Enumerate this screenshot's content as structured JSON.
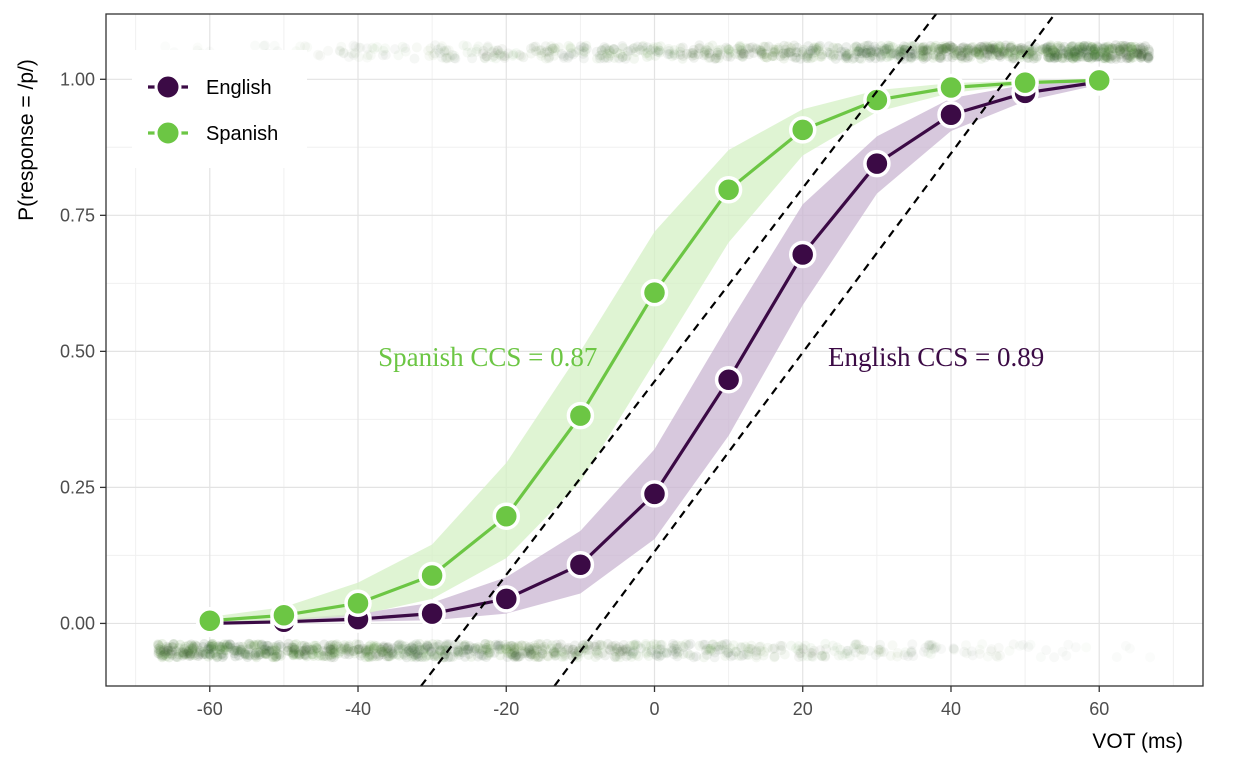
{
  "chart_data": {
    "type": "line",
    "xlabel": "VOT (ms)",
    "ylabel": "P(response = /p/)",
    "xlim": [
      -74,
      74
    ],
    "ylim": [
      -0.115,
      1.12
    ],
    "x_ticks": [
      -60,
      -40,
      -20,
      0,
      20,
      40,
      60
    ],
    "x_tick_labels": [
      "-60",
      "-40",
      "-20",
      "0",
      "20",
      "40",
      "60"
    ],
    "y_ticks": [
      0,
      0.25,
      0.5,
      0.75,
      1.0
    ],
    "y_tick_labels": [
      "0.00",
      "0.25",
      "0.50",
      "0.75",
      "1.00"
    ],
    "grid": true,
    "legend_position": "top-left",
    "x": [
      -60,
      -50,
      -40,
      -30,
      -20,
      -10,
      0,
      10,
      20,
      30,
      40,
      50,
      60
    ],
    "series": [
      {
        "name": "English",
        "color": "#3b0a45",
        "ribbon_color": "#c9b5d2",
        "values": [
          0.0,
          0.003,
          0.008,
          0.018,
          0.045,
          0.108,
          0.238,
          0.448,
          0.678,
          0.845,
          0.935,
          0.975,
          0.995
        ],
        "lower": [
          0.0,
          0.001,
          0.003,
          0.006,
          0.018,
          0.055,
          0.155,
          0.345,
          0.585,
          0.79,
          0.905,
          0.96,
          0.99
        ],
        "upper": [
          0.004,
          0.008,
          0.018,
          0.038,
          0.085,
          0.17,
          0.32,
          0.55,
          0.77,
          0.895,
          0.965,
          0.99,
          1.0
        ]
      },
      {
        "name": "Spanish",
        "color": "#6cc644",
        "ribbon_color": "#d4f0c4",
        "values": [
          0.005,
          0.015,
          0.037,
          0.088,
          0.197,
          0.382,
          0.608,
          0.797,
          0.907,
          0.962,
          0.985,
          0.994,
          0.998
        ],
        "lower": [
          0.001,
          0.005,
          0.015,
          0.045,
          0.12,
          0.26,
          0.48,
          0.7,
          0.86,
          0.94,
          0.975,
          0.99,
          0.996
        ],
        "upper": [
          0.012,
          0.03,
          0.075,
          0.145,
          0.295,
          0.5,
          0.72,
          0.87,
          0.945,
          0.98,
          0.993,
          0.998,
          1.0
        ]
      }
    ],
    "reference_lines": [
      {
        "x": [
          -31.5,
          38
        ],
        "y": [
          -0.115,
          1.12
        ],
        "style": "dashed"
      },
      {
        "x": [
          -13.5,
          54
        ],
        "y": [
          -0.115,
          1.12
        ],
        "style": "dashed"
      }
    ],
    "response_jitter": [
      {
        "y": 1.05,
        "x_range": [
          -67,
          67
        ],
        "color": "#2f4f2a"
      },
      {
        "y": -0.05,
        "x_range": [
          -67,
          67
        ],
        "color": "#2f4f2a"
      }
    ],
    "annotations": [
      {
        "text": "Spanish CCS = 0.87",
        "x": -22.5,
        "y": 0.49,
        "color": "#6cc644"
      },
      {
        "text": "English CCS = 0.89",
        "x": 38,
        "y": 0.49,
        "color": "#3b0a45"
      }
    ]
  }
}
